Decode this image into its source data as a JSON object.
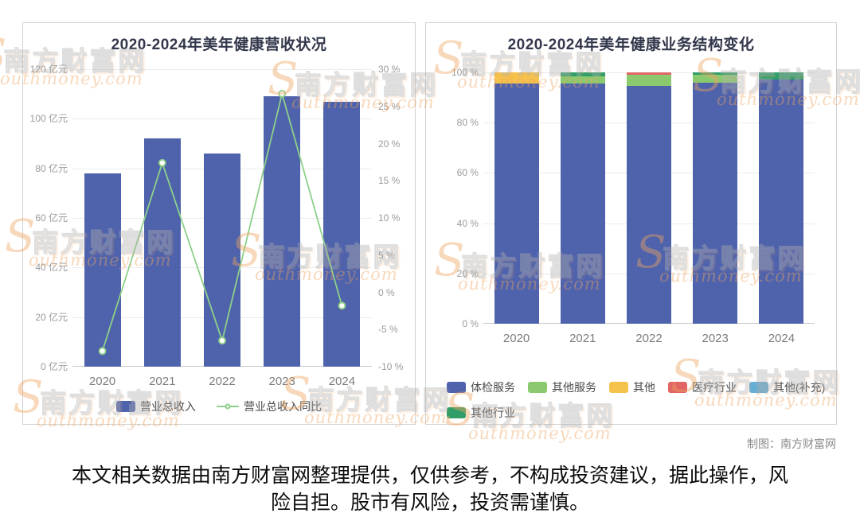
{
  "page": {
    "credit": "制图：南方财富网",
    "disclaimer": "本文相关数据由南方财富网整理提供，仅供参考，不构成投资建议，据此操作，风险自担。股市有风险，投资需谨慎。"
  },
  "watermark": {
    "prefix": "S",
    "text": "南方财富网",
    "subtext": "outhmoney.com"
  },
  "chart_data": [
    {
      "type": "bar",
      "title": "2020-2024年美年健康营收状况",
      "categories": [
        "2020",
        "2021",
        "2022",
        "2023",
        "2024"
      ],
      "series": [
        {
          "name": "营业总收入",
          "type": "bar",
          "unit": "亿元",
          "axis": "left",
          "values": [
            78,
            92,
            86,
            109,
            107
          ],
          "color": "#4f63ac"
        },
        {
          "name": "营业总收入同比",
          "type": "line",
          "unit": "%",
          "axis": "right",
          "values": [
            -7.9,
            17.4,
            -6.5,
            26.7,
            -1.8
          ],
          "color": "#8dd089"
        }
      ],
      "y_left": {
        "min": 0,
        "max": 120,
        "step": 20,
        "unit": "亿元"
      },
      "y_right": {
        "min": -10,
        "max": 30,
        "step": 5,
        "unit": "%"
      },
      "grid": true,
      "legend_position": "bottom"
    },
    {
      "type": "bar",
      "subtype": "stacked-percent",
      "title": "2020-2024年美年健康业务结构变化",
      "categories": [
        "2020",
        "2021",
        "2022",
        "2023",
        "2024"
      ],
      "y": {
        "min": 0,
        "max": 100,
        "step": 20,
        "unit": "%"
      },
      "series": [
        {
          "name": "体检服务",
          "color": "#4f63ac",
          "values": [
            95.5,
            95.5,
            94.5,
            96,
            97
          ]
        },
        {
          "name": "其他服务",
          "color": "#8bc96f",
          "values": [
            0,
            3,
            4.5,
            3,
            0
          ]
        },
        {
          "name": "其他",
          "color": "#f5c24b",
          "values": [
            4.5,
            0,
            0,
            0,
            0
          ]
        },
        {
          "name": "医疗行业",
          "color": "#e16565",
          "values": [
            0,
            0,
            1,
            0,
            0
          ]
        },
        {
          "name": "其他(补充)",
          "color": "#66aed4",
          "values": [
            0,
            0,
            0,
            0,
            0
          ]
        },
        {
          "name": "其他行业",
          "color": "#2f9e69",
          "values": [
            0,
            1.5,
            0,
            1,
            3
          ]
        }
      ],
      "grid": true,
      "legend_position": "bottom"
    }
  ]
}
